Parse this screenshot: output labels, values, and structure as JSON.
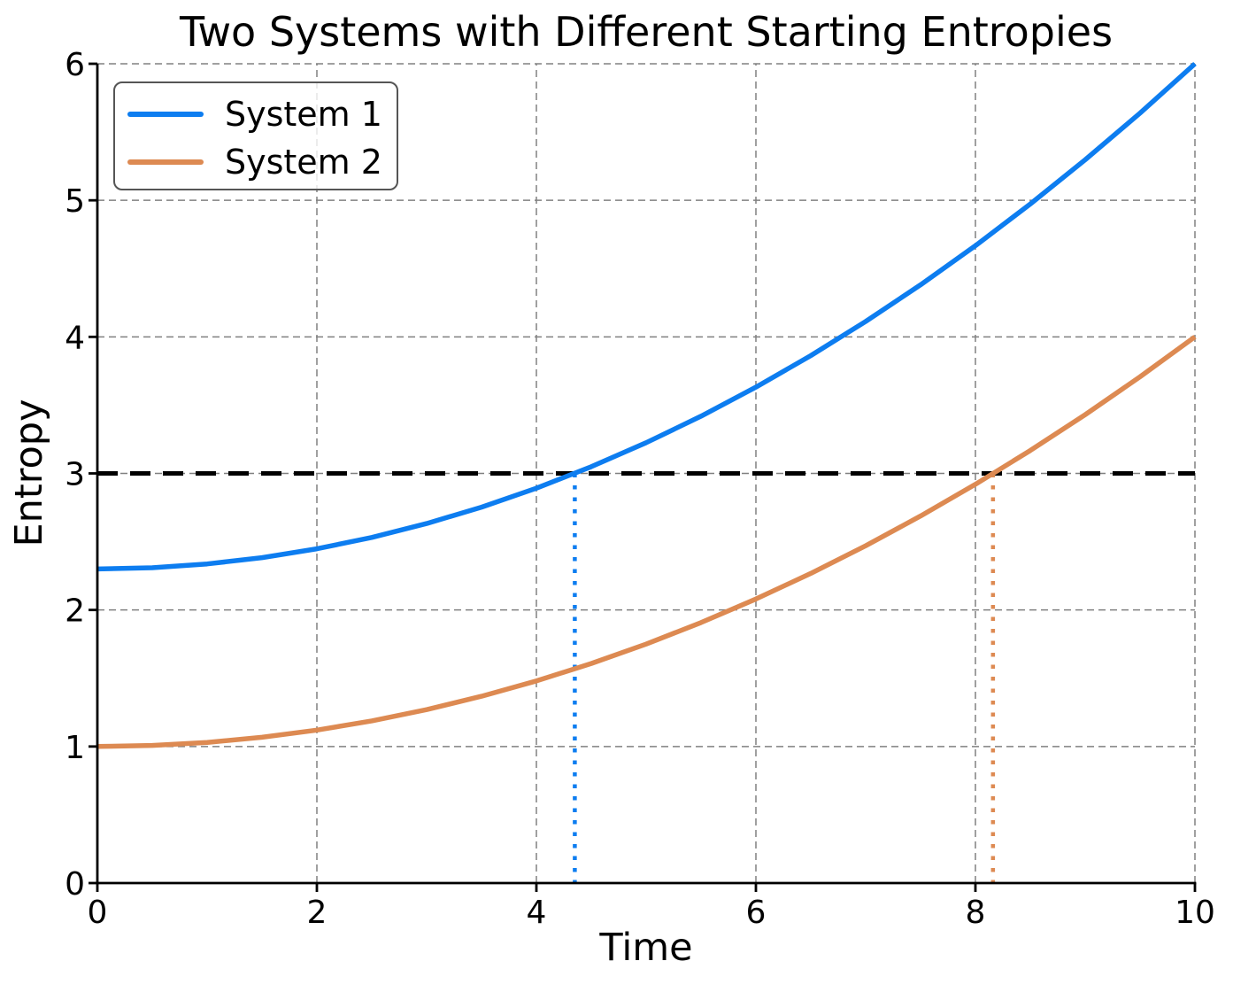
{
  "chart_data": {
    "type": "line",
    "title": "Two Systems with Different Starting Entropies",
    "xlabel": "Time",
    "ylabel": "Entropy",
    "xlim": [
      0,
      10
    ],
    "ylim": [
      0,
      6
    ],
    "xticks": [
      0,
      2,
      4,
      6,
      8,
      10
    ],
    "yticks": [
      0,
      1,
      2,
      3,
      4,
      5,
      6
    ],
    "grid": {
      "visible": true,
      "style": "dashed",
      "color": "#808080"
    },
    "axes_color": "#000000",
    "legend": {
      "position": "upper-left",
      "border_color": "#555555",
      "entries": [
        "System 1",
        "System 2"
      ]
    },
    "threshold": {
      "y": 3,
      "color": "#000000",
      "style": "dashed"
    },
    "series": [
      {
        "name": "System 1",
        "color": "#0d7df0",
        "x": [
          0,
          0.5,
          1,
          1.5,
          2,
          2.5,
          3,
          3.5,
          4,
          4.5,
          5,
          5.5,
          6,
          6.5,
          7,
          7.5,
          8,
          8.5,
          9,
          9.5,
          10
        ],
        "y": [
          2.3,
          2.309,
          2.337,
          2.383,
          2.448,
          2.531,
          2.633,
          2.753,
          2.892,
          3.049,
          3.225,
          3.419,
          3.632,
          3.863,
          4.113,
          4.381,
          4.668,
          4.973,
          5.297,
          5.639,
          6.0
        ]
      },
      {
        "name": "System 2",
        "color": "#dd8a52",
        "x": [
          0,
          0.5,
          1,
          1.5,
          2,
          2.5,
          3,
          3.5,
          4,
          4.5,
          5,
          5.5,
          6,
          6.5,
          7,
          7.5,
          8,
          8.5,
          9,
          9.5,
          10
        ],
        "y": [
          1.0,
          1.008,
          1.03,
          1.068,
          1.12,
          1.188,
          1.27,
          1.368,
          1.48,
          1.608,
          1.75,
          1.908,
          2.08,
          2.268,
          2.47,
          2.688,
          2.92,
          3.168,
          3.43,
          3.708,
          4.0
        ]
      }
    ],
    "crossings": [
      {
        "series": "System 1",
        "time": 4.35,
        "entropy": 3,
        "color": "#0d7df0",
        "style": "dotted"
      },
      {
        "series": "System 2",
        "time": 8.16,
        "entropy": 3,
        "color": "#dd8a52",
        "style": "dotted"
      }
    ]
  }
}
